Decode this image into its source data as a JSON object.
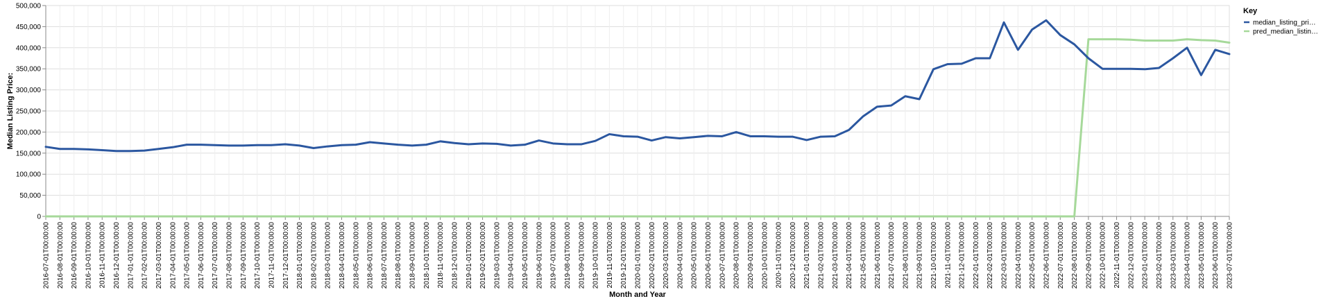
{
  "chart_data": {
    "type": "line",
    "title": "",
    "xlabel": "Month and Year",
    "ylabel": "Median Listing Price:",
    "ylim": [
      0,
      500000
    ],
    "y_ticks": [
      "0",
      "50,000",
      "100,000",
      "150,000",
      "200,000",
      "250,000",
      "300,000",
      "350,000",
      "400,000",
      "450,000",
      "500,000"
    ],
    "y_tick_values": [
      0,
      50000,
      100000,
      150000,
      200000,
      250000,
      300000,
      350000,
      400000,
      450000,
      500000
    ],
    "grid": true,
    "legend_placement": "top-right",
    "legend_title": "Key",
    "categories": [
      "2016-07-01T00:00:00",
      "2016-08-01T00:00:00",
      "2016-09-01T00:00:00",
      "2016-10-01T00:00:00",
      "2016-11-01T00:00:00",
      "2016-12-01T00:00:00",
      "2017-01-01T00:00:00",
      "2017-02-01T00:00:00",
      "2017-03-01T00:00:00",
      "2017-04-01T00:00:00",
      "2017-05-01T00:00:00",
      "2017-06-01T00:00:00",
      "2017-07-01T00:00:00",
      "2017-08-01T00:00:00",
      "2017-09-01T00:00:00",
      "2017-10-01T00:00:00",
      "2017-11-01T00:00:00",
      "2017-12-01T00:00:00",
      "2018-01-01T00:00:00",
      "2018-02-01T00:00:00",
      "2018-03-01T00:00:00",
      "2018-04-01T00:00:00",
      "2018-05-01T00:00:00",
      "2018-06-01T00:00:00",
      "2018-07-01T00:00:00",
      "2018-08-01T00:00:00",
      "2018-09-01T00:00:00",
      "2018-10-01T00:00:00",
      "2018-11-01T00:00:00",
      "2018-12-01T00:00:00",
      "2019-01-01T00:00:00",
      "2019-02-01T00:00:00",
      "2019-03-01T00:00:00",
      "2019-04-01T00:00:00",
      "2019-05-01T00:00:00",
      "2019-06-01T00:00:00",
      "2019-07-01T00:00:00",
      "2019-08-01T00:00:00",
      "2019-09-01T00:00:00",
      "2019-10-01T00:00:00",
      "2019-11-01T00:00:00",
      "2019-12-01T00:00:00",
      "2020-01-01T00:00:00",
      "2020-02-01T00:00:00",
      "2020-03-01T00:00:00",
      "2020-04-01T00:00:00",
      "2020-05-01T00:00:00",
      "2020-06-01T00:00:00",
      "2020-07-01T00:00:00",
      "2020-08-01T00:00:00",
      "2020-09-01T00:00:00",
      "2020-10-01T00:00:00",
      "2020-11-01T00:00:00",
      "2020-12-01T00:00:00",
      "2021-01-01T00:00:00",
      "2021-02-01T00:00:00",
      "2021-03-01T00:00:00",
      "2021-04-01T00:00:00",
      "2021-05-01T00:00:00",
      "2021-06-01T00:00:00",
      "2021-07-01T00:00:00",
      "2021-08-01T00:00:00",
      "2021-09-01T00:00:00",
      "2021-10-01T00:00:00",
      "2021-11-01T00:00:00",
      "2021-12-01T00:00:00",
      "2022-01-01T00:00:00",
      "2022-02-01T00:00:00",
      "2022-03-01T00:00:00",
      "2022-04-01T00:00:00",
      "2022-05-01T00:00:00",
      "2022-06-01T00:00:00",
      "2022-07-01T00:00:00",
      "2022-08-01T00:00:00",
      "2022-09-01T00:00:00",
      "2022-10-01T00:00:00",
      "2022-11-01T00:00:00",
      "2022-12-01T00:00:00",
      "2023-01-01T00:00:00",
      "2023-02-01T00:00:00",
      "2023-03-01T00:00:00",
      "2023-04-01T00:00:00",
      "2023-05-01T00:00:00",
      "2023-06-01T00:00:00",
      "2023-07-01T00:00:00"
    ],
    "series": [
      {
        "name": "median_listing_pri…",
        "color": "#2b57a0",
        "values": [
          165000,
          160000,
          160000,
          159000,
          157000,
          155000,
          155000,
          156000,
          160000,
          164000,
          170000,
          170000,
          169000,
          168000,
          168000,
          169000,
          169000,
          171000,
          168000,
          162000,
          166000,
          169000,
          170000,
          176000,
          173000,
          170000,
          168000,
          170000,
          178000,
          174000,
          171000,
          173000,
          172000,
          168000,
          170000,
          180000,
          173000,
          171000,
          171000,
          179000,
          195000,
          190000,
          189000,
          180000,
          188000,
          185000,
          188000,
          191000,
          190000,
          200000,
          190000,
          190000,
          189000,
          189000,
          181000,
          189000,
          190000,
          205000,
          237000,
          260000,
          263000,
          285000,
          278000,
          349000,
          361000,
          362000,
          375000,
          375000,
          460000,
          395000,
          443000,
          465000,
          430000,
          408000,
          375000,
          350000,
          350000,
          350000,
          349000,
          352000,
          375000,
          400000,
          335000,
          395000,
          385000
        ]
      },
      {
        "name": "pred_median_listin…",
        "color": "#a6d99a",
        "values": [
          0,
          0,
          0,
          0,
          0,
          0,
          0,
          0,
          0,
          0,
          0,
          0,
          0,
          0,
          0,
          0,
          0,
          0,
          0,
          0,
          0,
          0,
          0,
          0,
          0,
          0,
          0,
          0,
          0,
          0,
          0,
          0,
          0,
          0,
          0,
          0,
          0,
          0,
          0,
          0,
          0,
          0,
          0,
          0,
          0,
          0,
          0,
          0,
          0,
          0,
          0,
          0,
          0,
          0,
          0,
          0,
          0,
          0,
          0,
          0,
          0,
          0,
          0,
          0,
          0,
          0,
          0,
          0,
          0,
          0,
          0,
          0,
          0,
          0,
          420000,
          420000,
          420000,
          419000,
          417000,
          417000,
          417000,
          420000,
          418000,
          417000,
          412000
        ]
      }
    ]
  }
}
